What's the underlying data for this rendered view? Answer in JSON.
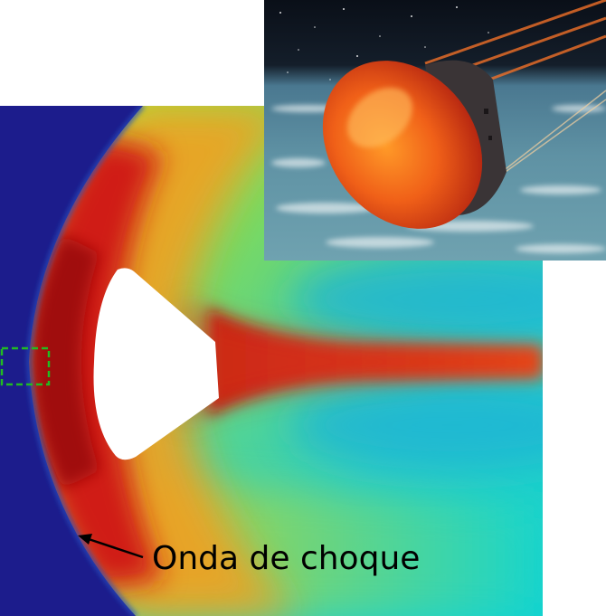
{
  "annotations": {
    "shock_wave_label": "Onda de choque"
  },
  "colors": {
    "background": "#ffffff",
    "freestream": "#1c1c8c",
    "peak": "#a80c0c",
    "wake_core": "#c01818",
    "flow_far": "#18d8cc",
    "detail_box": "#22bb22"
  },
  "inset": {
    "subject": "capsule-reentry-illustration"
  }
}
